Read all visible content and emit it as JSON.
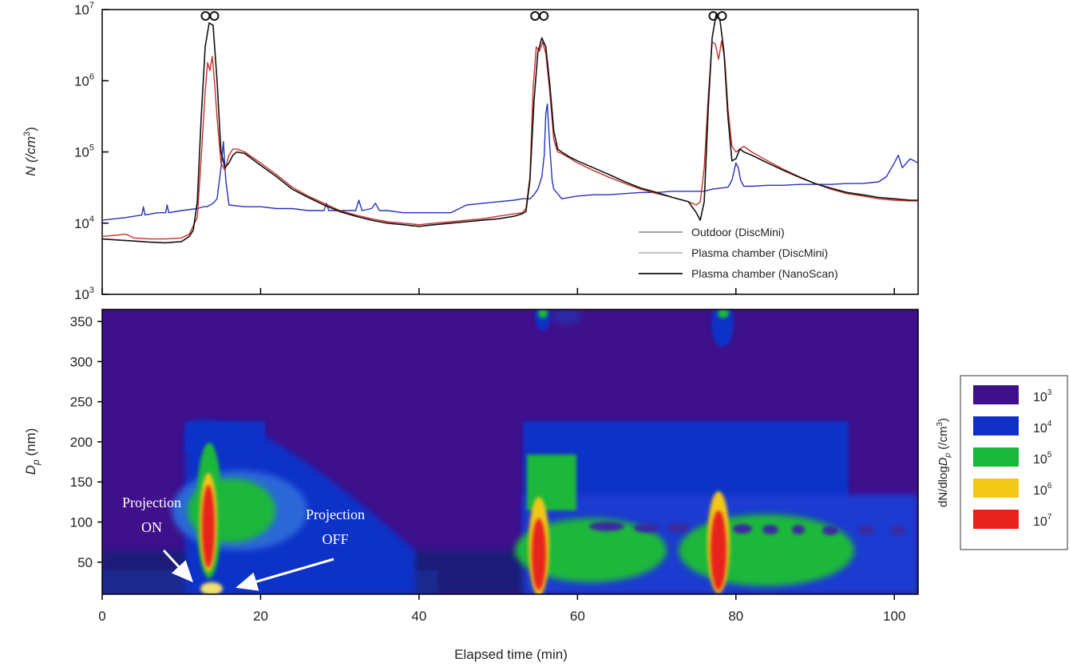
{
  "chart_data": [
    {
      "type": "line",
      "ylabel": "N (/cm³)",
      "ylabel_parts": {
        "base": "N (/cm",
        "sup": "3",
        "close": ")"
      },
      "yscale": "log",
      "ylim": [
        1000,
        10000000
      ],
      "xlim": [
        0,
        103
      ],
      "y_ticks": [
        {
          "value": 1000,
          "base": "10",
          "exp": "3"
        },
        {
          "value": 10000,
          "base": "10",
          "exp": "4"
        },
        {
          "value": 100000,
          "base": "10",
          "exp": "5"
        },
        {
          "value": 1000000,
          "base": "10",
          "exp": "6"
        },
        {
          "value": 10000000,
          "base": "10",
          "exp": "7"
        }
      ],
      "legend_position": "bottom-right",
      "markers": [
        {
          "type": "double-circle",
          "x": 13.6
        },
        {
          "type": "double-circle",
          "x": 55.2
        },
        {
          "type": "double-circle",
          "x": 77.7
        }
      ],
      "series": [
        {
          "name": "Outdoor (DiscMini)",
          "color": "#2430c0",
          "x": [
            0,
            3,
            5,
            5.2,
            5.4,
            7,
            8,
            8.2,
            8.4,
            10,
            12,
            12.8,
            13.2,
            14,
            14.5,
            15,
            15.3,
            15.6,
            16,
            18,
            20,
            22,
            24,
            26,
            28,
            28.3,
            28.6,
            30,
            32,
            32.4,
            32.8,
            34,
            34.5,
            35,
            36,
            38,
            40,
            42,
            43,
            44,
            46,
            48,
            50,
            52,
            53,
            54,
            54.5,
            55,
            55.5,
            55.8,
            56,
            56.2,
            56.5,
            56.8,
            57,
            57.5,
            58,
            60,
            62,
            64,
            66,
            68,
            70,
            72,
            74,
            76,
            77,
            78,
            79,
            79.5,
            80,
            80.3,
            80.6,
            81,
            82,
            84,
            86,
            88,
            90,
            92,
            94,
            96,
            98,
            99,
            100,
            100.5,
            101,
            102,
            103
          ],
          "y": [
            11000,
            12000,
            13000,
            17000,
            13000,
            14000,
            14000,
            18000,
            14000,
            15000,
            16000,
            17000,
            17000,
            19000,
            22000,
            60000,
            140000,
            40000,
            18000,
            17000,
            17000,
            16000,
            16000,
            15000,
            15000,
            19000,
            15000,
            15000,
            15000,
            21000,
            15000,
            16000,
            19000,
            15000,
            15000,
            14000,
            14000,
            14000,
            14000,
            14000,
            18000,
            19000,
            20000,
            21000,
            22000,
            22000,
            25000,
            30000,
            45000,
            90000,
            350000,
            470000,
            120000,
            40000,
            30000,
            26000,
            22000,
            24000,
            25000,
            25000,
            26000,
            27000,
            27000,
            28000,
            28000,
            28000,
            30000,
            31000,
            32000,
            40000,
            70000,
            60000,
            40000,
            33000,
            33000,
            34000,
            34000,
            35000,
            35000,
            35000,
            36000,
            36000,
            38000,
            45000,
            70000,
            90000,
            60000,
            80000,
            70000
          ],
          "legend_label": "Outdoor (DiscMini)"
        },
        {
          "name": "Plasma chamber (DiscMini)",
          "color": "#c83028",
          "x": [
            0,
            2,
            3,
            4,
            6,
            8,
            10,
            11,
            12,
            12.5,
            13,
            13.3,
            13.6,
            13.9,
            14.2,
            14.5,
            15,
            15.5,
            16,
            16.5,
            17,
            18,
            20,
            22,
            24,
            26,
            28,
            30,
            32,
            34,
            36,
            38,
            40,
            42,
            44,
            46,
            48,
            50,
            52,
            53,
            53.5,
            54,
            54.4,
            54.8,
            55.2,
            55.6,
            56,
            56.5,
            57,
            57.5,
            58,
            59,
            60,
            62,
            64,
            66,
            68,
            70,
            72,
            74,
            75,
            75.5,
            76,
            76.5,
            77,
            77.4,
            77.8,
            78.2,
            78.6,
            79,
            79.5,
            80,
            81,
            82,
            84,
            86,
            88,
            90,
            92,
            94,
            96,
            98,
            100,
            102,
            103
          ],
          "y": [
            6500,
            6800,
            7000,
            6200,
            6000,
            6000,
            6200,
            7000,
            12000,
            80000,
            700000,
            1800000,
            1400000,
            2200000,
            900000,
            300000,
            70000,
            55000,
            90000,
            110000,
            110000,
            100000,
            70000,
            48000,
            32000,
            24000,
            19000,
            15000,
            13000,
            11500,
            10500,
            10000,
            9500,
            10000,
            10500,
            11000,
            11500,
            12500,
            13500,
            14000,
            16000,
            45000,
            800000,
            3000000,
            2600000,
            3500000,
            2400000,
            700000,
            150000,
            100000,
            95000,
            82000,
            70000,
            55000,
            44000,
            36000,
            30000,
            26000,
            23000,
            20000,
            18000,
            20000,
            60000,
            600000,
            3500000,
            3300000,
            2000000,
            3600000,
            2000000,
            400000,
            120000,
            100000,
            120000,
            100000,
            75000,
            57000,
            45000,
            36000,
            30000,
            26000,
            24000,
            22000,
            21000,
            20500,
            20500
          ],
          "legend_label": "Plasma chamber (DiscMini)"
        },
        {
          "name": "Plasma chamber (NanoScan)",
          "color": "#111111",
          "x": [
            0,
            2,
            4,
            6,
            8,
            10,
            11,
            11.5,
            12,
            12.5,
            13,
            13.5,
            14,
            14.5,
            15,
            15.5,
            16,
            16.5,
            17,
            18,
            20,
            22,
            24,
            26,
            28,
            30,
            32,
            34,
            36,
            38,
            40,
            42,
            44,
            46,
            48,
            50,
            52,
            53,
            53.5,
            54,
            54.5,
            55,
            55.5,
            56,
            56.5,
            57,
            57.5,
            58,
            59,
            60,
            62,
            64,
            66,
            68,
            70,
            72,
            74,
            75,
            75.5,
            76,
            76.5,
            77,
            77.5,
            78,
            78.5,
            79,
            79.5,
            80,
            80.5,
            81,
            82,
            84,
            86,
            88,
            90,
            92,
            94,
            96,
            98,
            100,
            102,
            103
          ],
          "y": [
            6000,
            5800,
            5600,
            5400,
            5300,
            5500,
            6500,
            8000,
            20000,
            300000,
            3000000,
            6500000,
            6000000,
            1000000,
            100000,
            60000,
            70000,
            90000,
            100000,
            95000,
            65000,
            45000,
            30000,
            23000,
            18000,
            14500,
            12500,
            11000,
            10000,
            9500,
            9000,
            9500,
            10000,
            10500,
            11000,
            11500,
            12500,
            13500,
            14500,
            40000,
            500000,
            2500000,
            4000000,
            3000000,
            900000,
            200000,
            110000,
            100000,
            85000,
            75000,
            60000,
            48000,
            38000,
            31000,
            27000,
            23000,
            20000,
            14000,
            11000,
            20000,
            400000,
            4000000,
            8500000,
            7000000,
            2500000,
            300000,
            75000,
            80000,
            110000,
            100000,
            90000,
            70000,
            55000,
            44000,
            36000,
            31000,
            27000,
            25000,
            23000,
            22000,
            21000,
            21000
          ],
          "legend_label": "Plasma chamber (NanoScan)"
        }
      ]
    },
    {
      "type": "heatmap",
      "xlabel": "Elapsed time (min)",
      "ylabel_parts": {
        "d": "D",
        "sub": "p",
        "rest": " (nm)"
      },
      "xlim": [
        0,
        103
      ],
      "ylim": [
        10,
        365
      ],
      "x_ticks": [
        0,
        20,
        40,
        60,
        80,
        100
      ],
      "y_ticks": [
        50,
        100,
        150,
        200,
        250,
        300,
        350
      ],
      "colorbar": {
        "label_parts": {
          "a": "dN/dlog",
          "d": "D",
          "sub": "p",
          "b": " (/cm",
          "sup": "3",
          "c": ")"
        },
        "levels": [
          {
            "base": "10",
            "exp": "3",
            "color": "#3f0f8c"
          },
          {
            "base": "10",
            "exp": "4",
            "color": "#1030c8"
          },
          {
            "base": "10",
            "exp": "5",
            "color": "#1ab83a"
          },
          {
            "base": "10",
            "exp": "6",
            "color": "#f2c818"
          },
          {
            "base": "10",
            "exp": "7",
            "color": "#e8221c"
          }
        ]
      },
      "annotations": [
        {
          "line1": "Projection",
          "line2": "ON"
        },
        {
          "line1": "Projection",
          "line2": "OFF"
        }
      ]
    }
  ]
}
